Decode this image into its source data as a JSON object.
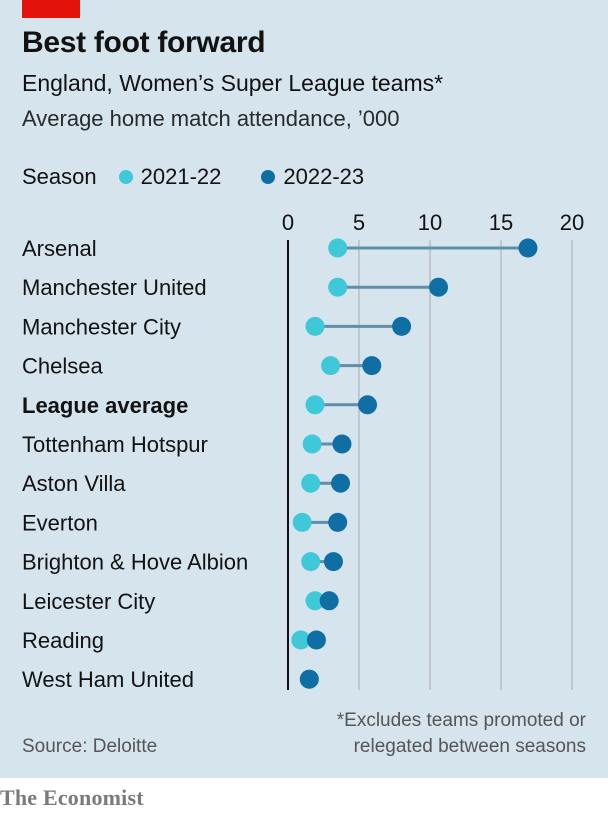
{
  "header": {
    "title": "Best foot forward",
    "subtitle": "England, Women’s Super League teams*",
    "unit": "Average home match attendance, ’000"
  },
  "legend": {
    "title": "Season",
    "items": [
      {
        "label": "2021-22",
        "color": "#3ec8d8"
      },
      {
        "label": "2022-23",
        "color": "#0f6ea3"
      }
    ]
  },
  "footnote": {
    "line1": "*Excludes teams promoted or",
    "line2": "relegated between seasons"
  },
  "source": "Source: Deloitte",
  "brand": "The Economist",
  "colors": {
    "background": "#d6e4ee",
    "accent_red": "#e3120b",
    "season1": "#3ec8d8",
    "season2": "#0f6ea3",
    "connector": "#5f8ea6",
    "grid": "#b9bfc4"
  },
  "chart_data": {
    "type": "dot-range",
    "title": "Best foot forward",
    "xlabel": "Average home match attendance, ’000",
    "xlim": [
      0,
      20
    ],
    "xticks": [
      0,
      5,
      10,
      15,
      20
    ],
    "series_names": [
      "2021-22",
      "2022-23"
    ],
    "rows": [
      {
        "team": "Arsenal",
        "s2122": 3.5,
        "s2223": 16.9,
        "bold": false
      },
      {
        "team": "Manchester United",
        "s2122": 3.5,
        "s2223": 10.6,
        "bold": false
      },
      {
        "team": "Manchester City",
        "s2122": 1.9,
        "s2223": 8.0,
        "bold": false
      },
      {
        "team": "Chelsea",
        "s2122": 3.0,
        "s2223": 5.9,
        "bold": false
      },
      {
        "team": "League average",
        "s2122": 1.9,
        "s2223": 5.6,
        "bold": true
      },
      {
        "team": "Tottenham Hotspur",
        "s2122": 1.7,
        "s2223": 3.8,
        "bold": false
      },
      {
        "team": "Aston Villa",
        "s2122": 1.6,
        "s2223": 3.7,
        "bold": false
      },
      {
        "team": "Everton",
        "s2122": 1.0,
        "s2223": 3.5,
        "bold": false
      },
      {
        "team": "Brighton & Hove Albion",
        "s2122": 1.6,
        "s2223": 3.2,
        "bold": false
      },
      {
        "team": "Leicester City",
        "s2122": 1.9,
        "s2223": 2.9,
        "bold": false
      },
      {
        "team": "Reading",
        "s2122": 0.9,
        "s2223": 2.0,
        "bold": false
      },
      {
        "team": "West Ham United",
        "s2122": 1.5,
        "s2223": 1.5,
        "bold": false
      }
    ]
  }
}
